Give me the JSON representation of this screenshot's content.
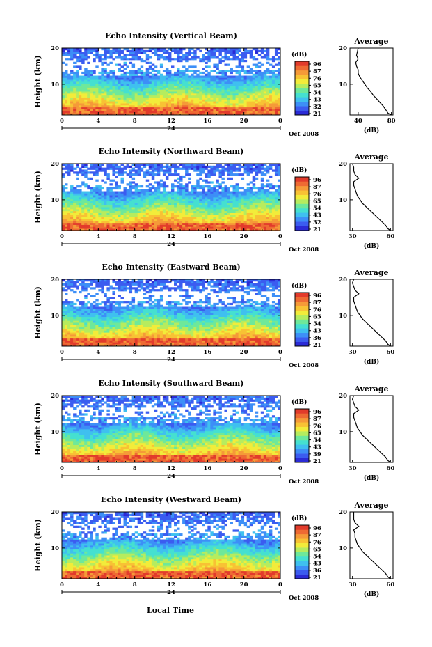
{
  "figure": {
    "xlabel": "Local Time",
    "date_label": "Oct 2008",
    "day_label": "24"
  },
  "colorbar": {
    "unit_label": "(dB)",
    "ticks_by_panel": [
      [
        "96",
        "87",
        "76",
        "65",
        "54",
        "43",
        "32",
        "21"
      ],
      [
        "96",
        "87",
        "76",
        "65",
        "54",
        "43",
        "32",
        "21"
      ],
      [
        "96",
        "87",
        "76",
        "65",
        "54",
        "43",
        "36",
        "21"
      ],
      [
        "96",
        "87",
        "76",
        "65",
        "54",
        "43",
        "39",
        "21"
      ],
      [
        "96",
        "87",
        "76",
        "65",
        "54",
        "43",
        "36",
        "21"
      ]
    ],
    "colors": [
      "#2b2bd6",
      "#3b5cf0",
      "#3d8ff7",
      "#3fc0ef",
      "#45e0d0",
      "#6ee89a",
      "#b6ec5e",
      "#f2ec3a",
      "#f8c234",
      "#f59a38",
      "#ee6a33",
      "#e23b2b"
    ]
  },
  "chart_data": [
    {
      "type": "heatmap",
      "title": "Echo Intensity (Vertical Beam)",
      "ylabel": "Height (km)",
      "x_ticks": [
        "0",
        "4",
        "8",
        "12",
        "16",
        "20",
        "0"
      ],
      "xlim": [
        0,
        24
      ],
      "y_ticks": [
        "10",
        "20"
      ],
      "ylim": [
        1.5,
        20
      ],
      "profile": {
        "title": "Average",
        "xlabel": "(dB)",
        "x_ticks": [
          "40",
          "80"
        ],
        "xlim": [
          30,
          82
        ],
        "height": [
          1.5,
          2,
          3,
          4,
          5,
          6,
          7,
          8,
          9,
          10,
          11,
          12,
          13,
          14,
          15,
          16,
          17,
          18,
          19,
          20
        ],
        "values": [
          80,
          76,
          73,
          70,
          66,
          62,
          58,
          55,
          51,
          48,
          45,
          42,
          40,
          40,
          38,
          37,
          40,
          38,
          39,
          40
        ]
      }
    },
    {
      "type": "heatmap",
      "title": "Echo Intensity (Northward Beam)",
      "ylabel": "Height (km)",
      "x_ticks": [
        "0",
        "4",
        "8",
        "12",
        "16",
        "20",
        "0"
      ],
      "xlim": [
        0,
        24
      ],
      "y_ticks": [
        "10",
        "20"
      ],
      "ylim": [
        1.5,
        20
      ],
      "profile": {
        "title": "Average",
        "xlabel": "(dB)",
        "x_ticks": [
          "30",
          "60"
        ],
        "xlim": [
          28,
          62
        ],
        "height": [
          1.5,
          2,
          3,
          4,
          5,
          6,
          7,
          8,
          9,
          10,
          11,
          12,
          13,
          14,
          15,
          16,
          17,
          18,
          19,
          20
        ],
        "values": [
          60,
          58,
          56,
          53,
          50,
          47,
          44,
          41,
          38,
          36,
          34,
          33,
          32,
          31,
          31,
          35,
          32,
          31,
          31,
          30
        ]
      }
    },
    {
      "type": "heatmap",
      "title": "Echo Intensity (Eastward Beam)",
      "ylabel": "Height (km)",
      "x_ticks": [
        "0",
        "4",
        "8",
        "12",
        "16",
        "20",
        "0"
      ],
      "xlim": [
        0,
        24
      ],
      "y_ticks": [
        "10",
        "20"
      ],
      "ylim": [
        1.5,
        20
      ],
      "profile": {
        "title": "Average",
        "xlabel": "(dB)",
        "x_ticks": [
          "30",
          "60"
        ],
        "xlim": [
          28,
          62
        ],
        "height": [
          1.5,
          2,
          3,
          4,
          5,
          6,
          7,
          8,
          9,
          10,
          11,
          12,
          13,
          14,
          15,
          16,
          17,
          18,
          19,
          20
        ],
        "values": [
          60,
          58,
          56,
          53,
          50,
          47,
          44,
          41,
          38,
          36,
          34,
          33,
          32,
          31,
          31,
          35,
          32,
          31,
          30,
          31
        ]
      }
    },
    {
      "type": "heatmap",
      "title": "Echo Intensity (Southward Beam)",
      "ylabel": "Height (km)",
      "x_ticks": [
        "0",
        "4",
        "8",
        "12",
        "16",
        "20",
        "0"
      ],
      "xlim": [
        0,
        24
      ],
      "y_ticks": [
        "10",
        "20"
      ],
      "ylim": [
        1.5,
        20
      ],
      "profile": {
        "title": "Average",
        "xlabel": "(dB)",
        "x_ticks": [
          "30",
          "60"
        ],
        "xlim": [
          28,
          62
        ],
        "height": [
          1.5,
          2,
          3,
          4,
          5,
          6,
          7,
          8,
          9,
          10,
          11,
          12,
          13,
          14,
          15,
          16,
          17,
          18,
          19,
          20
        ],
        "values": [
          60,
          58,
          56,
          53,
          50,
          47,
          44,
          41,
          38,
          36,
          34,
          33,
          32,
          31,
          31,
          35,
          32,
          31,
          30,
          31
        ]
      }
    },
    {
      "type": "heatmap",
      "title": "Echo Intensity (Westward Beam)",
      "ylabel": "Height (km)",
      "x_ticks": [
        "0",
        "4",
        "8",
        "12",
        "16",
        "20",
        "0"
      ],
      "xlim": [
        0,
        24
      ],
      "y_ticks": [
        "10",
        "20"
      ],
      "ylim": [
        1.5,
        20
      ],
      "profile": {
        "title": "Average",
        "xlabel": "(dB)",
        "x_ticks": [
          "30",
          "60"
        ],
        "xlim": [
          28,
          62
        ],
        "height": [
          1.5,
          2,
          3,
          4,
          5,
          6,
          7,
          8,
          9,
          10,
          11,
          12,
          13,
          14,
          15,
          16,
          17,
          18,
          19,
          20
        ],
        "values": [
          60,
          58,
          56,
          53,
          50,
          47,
          44,
          41,
          38,
          36,
          34,
          33,
          32,
          32,
          31,
          35,
          32,
          31,
          31,
          31
        ]
      }
    }
  ]
}
